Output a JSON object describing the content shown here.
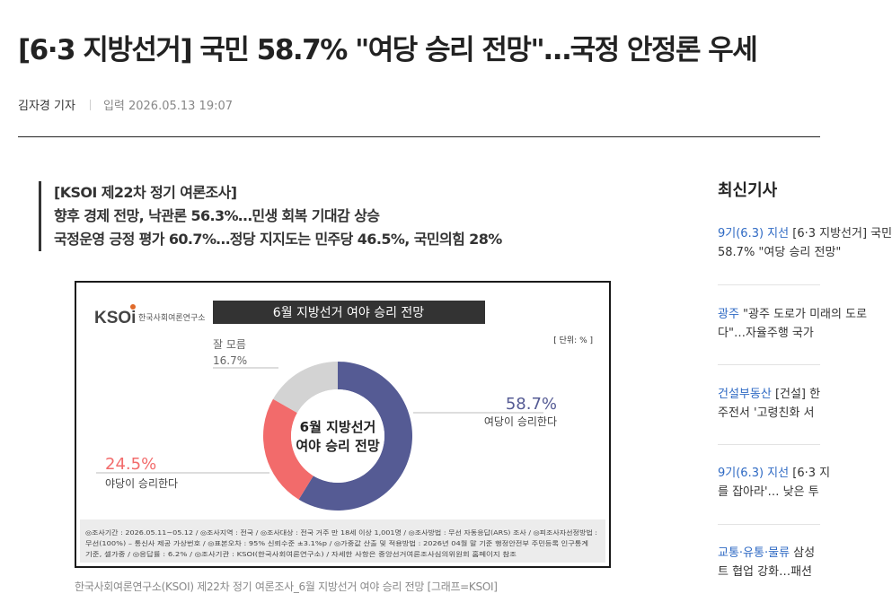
{
  "article": {
    "headline": "[6·3 지방선거] 국민 58.7% \"여당 승리 전망\"…국정 안정론 우세",
    "reporter": "김자경 기자",
    "published": "입력 2026.05.13 19:07",
    "subtitles": [
      "[KSOI 제22차 정기 여론조사]",
      "향후 경제 전망, 낙관론 56.3%…민생 회복 기대감 상승",
      "국정운영 긍정 평가 60.7%…정당 지지도는 민주당 46.5%, 국민의힘 28%"
    ],
    "caption": "한국사회여론연구소(KSOI) 제22차 정기 여론조사_6월 지방선거 여야 승리 전망 [그래프=KSOI]"
  },
  "figure": {
    "logo_text": "KSOi",
    "logo_org": "한국사회여론연구소",
    "banner": "6월 지방선거 여야 승리 전망",
    "unit": "[ 단위: % ]",
    "center_line1": "6월 지방선거",
    "center_line2": "여야 승리 전망",
    "labels": {
      "ruling_value": "58.7%",
      "ruling_label": "여당이 승리한다",
      "opposition_value": "24.5%",
      "opposition_label": "야당이 승리한다",
      "unknown_label": "잘 모름",
      "unknown_value": "16.7%"
    },
    "notes": [
      "◎조사기간 : 2026.05.11~05.12 / ◎조사지역 : 전국 / ◎조사대상 : 전국 거주 만 18세 이상 1,001명 / ◎조사방법 : 무선 자동응답(ARS) 조사 / ◎피조사자선정방법 :",
      "무선(100%) – 통신사 제공 가상번호 / ◎표본오차 : 95% 신뢰수준 ±3.1%p / ◎가중값 산출 및 적용방법 : 2026년 04월 말 기준 행정안전부 주민등록 인구통계",
      "기준, 셀가중 / ◎응답률 : 6.2% / ◎조사기관 : KSOI(한국사회여론연구소) / 자세한 사항은 중앙선거여론조사심의위원회 홈페이지 참조"
    ],
    "colors": {
      "ruling": "#555b94",
      "opposition": "#f26b6b",
      "unknown": "#d3d3d3"
    }
  },
  "chart_data": {
    "type": "pie",
    "title": "6월 지방선거 여야 승리 전망",
    "unit": "%",
    "categories": [
      "여당이 승리한다",
      "야당이 승리한다",
      "잘 모름"
    ],
    "values": [
      58.7,
      24.5,
      16.7
    ]
  },
  "sidebar": {
    "title": "최신기사",
    "items": [
      {
        "category": "9기(6.3) 지선",
        "line1": " [6·3 지방선거] 국민",
        "line2": "58.7% \"여당 승리 전망\""
      },
      {
        "category": "광주",
        "line1": " \"광주 도로가 미래의 도로",
        "line2": "다\"…자율주행 국가"
      },
      {
        "category": "건설부동산",
        "line1": " [건설] 한",
        "line2": "주전서 '고령친화 서"
      },
      {
        "category": "9기(6.3) 지선",
        "line1": " [6·3 지",
        "line2": "를 잡아라'… 낮은 투"
      },
      {
        "category": "교통·유통·물류",
        "line1": " 삼성",
        "line2": "트 협업 강화…패션"
      }
    ]
  }
}
